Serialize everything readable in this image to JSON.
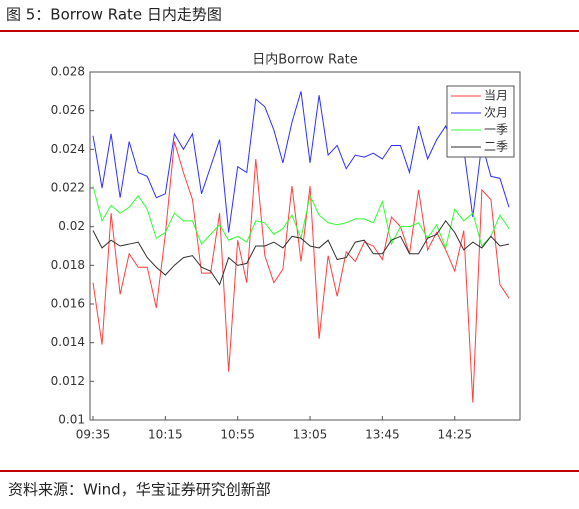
{
  "header": {
    "title": "图 5：Borrow Rate 日内走势图"
  },
  "chart_data": {
    "type": "line",
    "title": "日内Borrow Rate",
    "categories": [
      "09:35",
      null,
      null,
      null,
      null,
      null,
      null,
      null,
      "10:15",
      null,
      null,
      null,
      null,
      null,
      null,
      null,
      "10:55",
      null,
      null,
      null,
      null,
      null,
      null,
      null,
      "13:05",
      null,
      null,
      null,
      null,
      null,
      null,
      null,
      "13:45",
      null,
      null,
      null,
      null,
      null,
      null,
      null,
      "14:25",
      null,
      null,
      null,
      null,
      null,
      null
    ],
    "series": [
      {
        "name": "当月",
        "color": "#ff4040",
        "values": [
          0.0171,
          0.0139,
          0.0207,
          0.0165,
          0.0186,
          0.0179,
          0.0179,
          0.0158,
          0.0196,
          0.0244,
          0.0228,
          0.0214,
          0.0176,
          0.0176,
          0.0207,
          0.0125,
          0.0193,
          0.0171,
          0.0235,
          0.0185,
          0.0171,
          0.0178,
          0.0221,
          0.0182,
          0.0221,
          0.0142,
          0.0185,
          0.0164,
          0.0187,
          0.0182,
          0.0192,
          0.019,
          0.0183,
          0.0205,
          0.02,
          0.0186,
          0.0219,
          0.0188,
          0.0197,
          0.0188,
          0.0177,
          0.0198,
          0.0109,
          0.0219,
          0.0214,
          0.017,
          0.0163
        ]
      },
      {
        "name": "次月",
        "color": "#3030ff",
        "values": [
          0.0247,
          0.022,
          0.0248,
          0.0215,
          0.0244,
          0.0228,
          0.0226,
          0.0215,
          0.0217,
          0.0248,
          0.024,
          0.0248,
          0.0217,
          0.0231,
          0.0245,
          0.0197,
          0.0231,
          0.0228,
          0.0266,
          0.0262,
          0.025,
          0.0233,
          0.0254,
          0.027,
          0.0233,
          0.0268,
          0.0237,
          0.0242,
          0.023,
          0.0237,
          0.0236,
          0.0238,
          0.0235,
          0.0242,
          0.0242,
          0.0228,
          0.0252,
          0.0235,
          0.0245,
          0.0252,
          0.024,
          0.024,
          0.0205,
          0.0243,
          0.0226,
          0.0225,
          0.021
        ]
      },
      {
        "name": "一季",
        "color": "#30ff30",
        "values": [
          0.0221,
          0.0203,
          0.0211,
          0.0207,
          0.021,
          0.0216,
          0.0209,
          0.0194,
          0.0197,
          0.0207,
          0.0203,
          0.0203,
          0.0191,
          0.0196,
          0.0201,
          0.0193,
          0.0195,
          0.0192,
          0.0203,
          0.0202,
          0.0196,
          0.0199,
          0.0206,
          0.0194,
          0.0216,
          0.0206,
          0.0202,
          0.0201,
          0.0202,
          0.0204,
          0.0204,
          0.0202,
          0.0213,
          0.0191,
          0.02,
          0.02,
          0.0202,
          0.0194,
          0.0201,
          0.0189,
          0.0209,
          0.0203,
          0.0207,
          0.019,
          0.0195,
          0.0206,
          0.0199
        ]
      },
      {
        "name": "二季",
        "color": "#303030",
        "values": [
          0.0198,
          0.0189,
          0.0193,
          0.019,
          0.0191,
          0.0192,
          0.0184,
          0.0179,
          0.0175,
          0.018,
          0.0184,
          0.0185,
          0.0179,
          0.0177,
          0.017,
          0.0184,
          0.018,
          0.0181,
          0.019,
          0.019,
          0.0192,
          0.0189,
          0.0195,
          0.0194,
          0.019,
          0.0189,
          0.0193,
          0.0183,
          0.0184,
          0.0192,
          0.0193,
          0.0186,
          0.0186,
          0.0193,
          0.0195,
          0.0186,
          0.0186,
          0.0194,
          0.0196,
          0.0203,
          0.0197,
          0.0188,
          0.0192,
          0.0189,
          0.0195,
          0.019,
          0.0191
        ]
      }
    ],
    "ylim": [
      0.01,
      0.028
    ],
    "yticks": [
      0.01,
      0.012,
      0.014,
      0.016,
      0.018,
      0.02,
      0.022,
      0.024,
      0.026,
      0.028
    ],
    "legend": "upper right"
  },
  "footer": {
    "source": "资料来源：Wind，华宝证券研究创新部"
  }
}
